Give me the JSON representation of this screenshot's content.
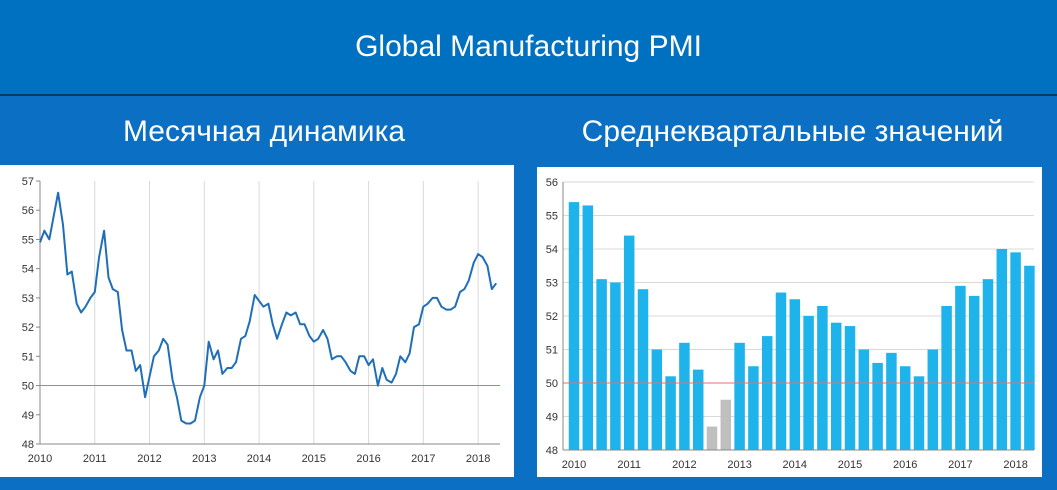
{
  "title": "Global Manufacturing PMI",
  "charts": {
    "left_title": "Месячная динамика",
    "right_title": "Среднеквартальные значений"
  },
  "colors": {
    "background": "#0B6FC4",
    "line": "#1F6FB8",
    "bar": "#1FB3EC",
    "bar_muted": "#BFBFBF",
    "reference": "#E07070",
    "grid": "#D9D9D9"
  },
  "chart_data": [
    {
      "type": "line",
      "title": "Месячная динамика",
      "xlim": [
        2010,
        2018.4
      ],
      "ylim": [
        48,
        57
      ],
      "yticks": [
        48,
        49,
        50,
        51,
        52,
        53,
        54,
        55,
        56,
        57
      ],
      "xticks": [
        "2010",
        "2011",
        "2012",
        "2013",
        "2014",
        "2015",
        "2016",
        "2017",
        "2018"
      ],
      "grid": true,
      "reference_line": 50,
      "series": [
        {
          "x": [
            2010,
            2010.08,
            2010.17,
            2010.25,
            2010.33,
            2010.42,
            2010.5,
            2010.58,
            2010.67,
            2010.75,
            2010.83,
            2010.92,
            2011,
            2011.08,
            2011.17,
            2011.25,
            2011.33,
            2011.42,
            2011.5,
            2011.58,
            2011.67,
            2011.75,
            2011.83,
            2011.92,
            2012,
            2012.08,
            2012.17,
            2012.25,
            2012.33,
            2012.42,
            2012.5,
            2012.58,
            2012.67,
            2012.75,
            2012.83,
            2012.92,
            2013,
            2013.08,
            2013.17,
            2013.25,
            2013.33,
            2013.42,
            2013.5,
            2013.58,
            2013.67,
            2013.75,
            2013.83,
            2013.92,
            2014,
            2014.08,
            2014.17,
            2014.25,
            2014.33,
            2014.42,
            2014.5,
            2014.58,
            2014.67,
            2014.75,
            2014.83,
            2014.92,
            2015,
            2015.08,
            2015.17,
            2015.25,
            2015.33,
            2015.42,
            2015.5,
            2015.58,
            2015.67,
            2015.75,
            2015.83,
            2015.92,
            2016,
            2016.08,
            2016.17,
            2016.25,
            2016.33,
            2016.42,
            2016.5,
            2016.58,
            2016.67,
            2016.75,
            2016.83,
            2016.92,
            2017,
            2017.08,
            2017.17,
            2017.25,
            2017.33,
            2017.42,
            2017.5,
            2017.58,
            2017.67,
            2017.75,
            2017.83,
            2017.92,
            2018,
            2018.08,
            2018.17,
            2018.25,
            2018.33
          ],
          "values": [
            54.9,
            55.3,
            55.0,
            55.8,
            56.6,
            55.5,
            53.8,
            53.9,
            52.8,
            52.5,
            52.7,
            53.0,
            53.2,
            54.4,
            55.3,
            53.7,
            53.3,
            53.2,
            51.9,
            51.2,
            51.2,
            50.5,
            50.7,
            49.6,
            50.3,
            51.0,
            51.2,
            51.6,
            51.4,
            50.2,
            49.6,
            48.8,
            48.7,
            48.7,
            48.8,
            49.6,
            50.0,
            51.5,
            50.9,
            51.2,
            50.4,
            50.6,
            50.6,
            50.8,
            51.6,
            51.7,
            52.2,
            53.1,
            52.9,
            52.7,
            52.8,
            52.1,
            51.6,
            52.1,
            52.5,
            52.4,
            52.5,
            52.1,
            52.1,
            51.7,
            51.5,
            51.6,
            51.9,
            51.6,
            50.9,
            51.0,
            51.0,
            50.8,
            50.5,
            50.4,
            51.0,
            51.0,
            50.7,
            50.9,
            50.0,
            50.6,
            50.2,
            50.1,
            50.4,
            51.0,
            50.8,
            51.1,
            52.0,
            52.1,
            52.7,
            52.8,
            53.0,
            53.0,
            52.7,
            52.6,
            52.6,
            52.7,
            53.2,
            53.3,
            53.6,
            54.2,
            54.5,
            54.4,
            54.1,
            53.3,
            53.5
          ]
        }
      ]
    },
    {
      "type": "bar",
      "title": "Среднеквартальные значений",
      "ylim": [
        48,
        56
      ],
      "yticks": [
        48,
        49,
        50,
        51,
        52,
        53,
        54,
        55,
        56
      ],
      "xticks": [
        "2010",
        "2011",
        "2012",
        "2013",
        "2014",
        "2015",
        "2016",
        "2017",
        "2018"
      ],
      "grid": true,
      "reference_line": 50,
      "values": [
        55.4,
        55.3,
        53.1,
        53.0,
        54.4,
        52.8,
        51.0,
        50.2,
        51.2,
        50.4,
        48.7,
        49.5,
        51.2,
        50.5,
        51.4,
        52.7,
        52.5,
        52.0,
        52.3,
        51.8,
        51.7,
        51.0,
        50.6,
        50.9,
        50.5,
        50.2,
        51.0,
        52.3,
        52.9,
        52.6,
        53.1,
        54.0,
        53.9,
        53.5
      ],
      "muted_indices": [
        10,
        11
      ]
    }
  ]
}
